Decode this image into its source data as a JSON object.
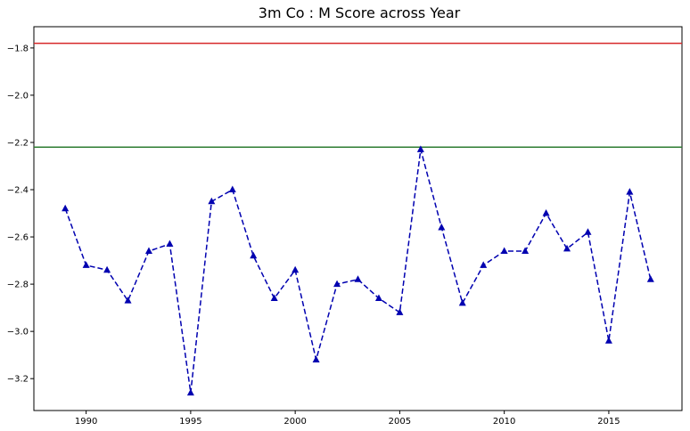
{
  "chart_data": {
    "type": "line",
    "title": "3m Co : M Score across Year",
    "xlabel": "",
    "ylabel": "",
    "xlim": [
      1987.5,
      2018.5
    ],
    "ylim": [
      -3.335,
      -1.71
    ],
    "x_ticks": [
      1990,
      1995,
      2000,
      2005,
      2010,
      2015
    ],
    "y_ticks": [
      -1.8,
      -2.0,
      -2.2,
      -2.4,
      -2.6,
      -2.8,
      -3.0,
      -3.2
    ],
    "x_tick_labels": [
      "1990",
      "1995",
      "2000",
      "2005",
      "2010",
      "2015"
    ],
    "y_tick_labels": [
      "−1.8",
      "−2.0",
      "−2.2",
      "−2.4",
      "−2.6",
      "−2.8",
      "−3.0",
      "−3.2"
    ],
    "grid": false,
    "series": [
      {
        "style": "dashed line with triangle markers",
        "color": "#0000b0",
        "x": [
          1989,
          1990,
          1991,
          1992,
          1993,
          1994,
          1995,
          1996,
          1997,
          1998,
          1999,
          2000,
          2001,
          2002,
          2003,
          2004,
          2005,
          2006,
          2007,
          2008,
          2009,
          2010,
          2011,
          2012,
          2013,
          2014,
          2015,
          2016,
          2017
        ],
        "y": [
          -2.48,
          -2.72,
          -2.74,
          -2.87,
          -2.66,
          -2.63,
          -3.26,
          -2.45,
          -2.4,
          -2.68,
          -2.86,
          -2.74,
          -3.12,
          -2.8,
          -2.78,
          -2.86,
          -2.92,
          -2.23,
          -2.56,
          -2.88,
          -2.72,
          -2.66,
          -2.66,
          -2.5,
          -2.65,
          -2.58,
          -3.04,
          -2.41,
          -2.78
        ]
      }
    ],
    "reference_lines": [
      {
        "y": -1.78,
        "color": "#d62728"
      },
      {
        "y": -2.22,
        "color": "#2e7d32"
      }
    ]
  }
}
